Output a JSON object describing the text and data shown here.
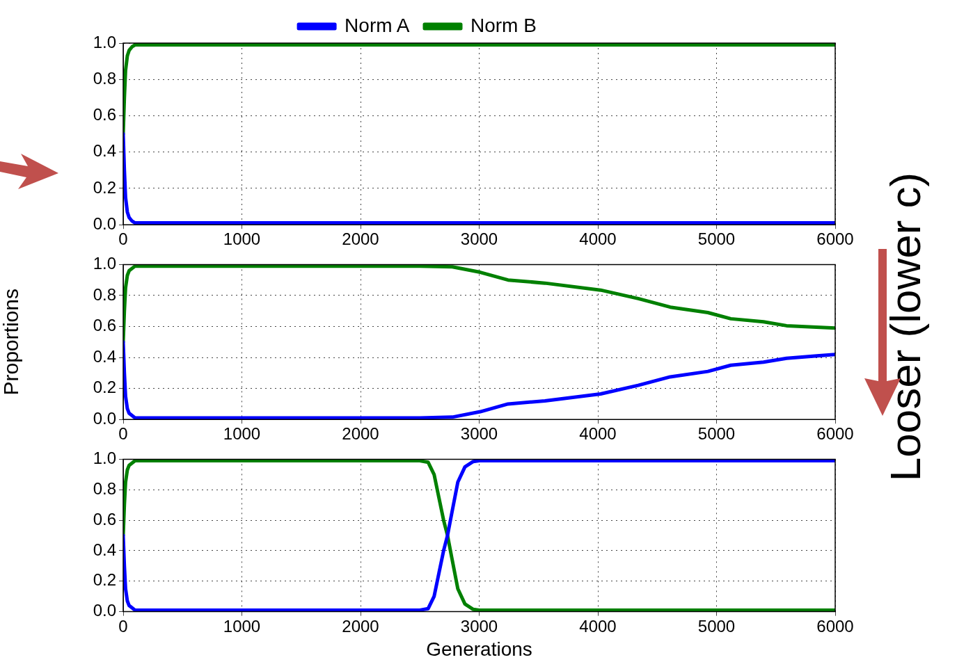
{
  "chart_data": [
    {
      "type": "line",
      "legend": "top",
      "grid": true,
      "marker": "none",
      "line_style": "solid",
      "x": [
        0,
        10,
        20,
        35,
        50,
        75,
        100,
        150,
        1000,
        2000,
        3000,
        4000,
        5000,
        6000
      ],
      "xlim": [
        0,
        6000
      ],
      "xticks": [
        0,
        1000,
        2000,
        3000,
        4000,
        5000,
        6000
      ],
      "ylim": [
        0,
        1
      ],
      "yticks": [
        {
          "value": 0,
          "label": "0.0"
        },
        {
          "value": 0.2,
          "label": "0.2"
        },
        {
          "value": 0.4,
          "label": "0.4"
        },
        {
          "value": 0.6,
          "label": "0.6"
        },
        {
          "value": 0.8,
          "label": "0.8"
        },
        {
          "value": 1,
          "label": "1.0"
        }
      ],
      "series": [
        {
          "name": "Norm A",
          "color": "#0000ff",
          "values": [
            0.5,
            0.3,
            0.15,
            0.07,
            0.04,
            0.02,
            0.01,
            0.01,
            0.01,
            0.01,
            0.01,
            0.01,
            0.01,
            0.01
          ]
        },
        {
          "name": "Norm B",
          "color": "#008000",
          "values": [
            0.5,
            0.7,
            0.85,
            0.93,
            0.96,
            0.98,
            0.99,
            0.99,
            0.99,
            0.99,
            0.99,
            0.99,
            0.99,
            0.99
          ]
        }
      ]
    },
    {
      "type": "line",
      "legend": false,
      "grid": true,
      "marker": "none",
      "line_style": "solid",
      "ylabel": "Proportions",
      "annotations": [
        "Looser (lower c)"
      ],
      "x": [
        0,
        10,
        20,
        35,
        50,
        100,
        1000,
        2000,
        2500,
        2774,
        3009,
        3243,
        3554,
        4023,
        4340,
        4610,
        4927,
        5120,
        5396,
        5590,
        6000
      ],
      "xlim": [
        0,
        6000
      ],
      "xticks": [
        0,
        1000,
        2000,
        3000,
        4000,
        5000,
        6000
      ],
      "ylim": [
        0,
        1
      ],
      "yticks": [
        {
          "value": 0,
          "label": "0.0"
        },
        {
          "value": 0.2,
          "label": "0.2"
        },
        {
          "value": 0.4,
          "label": "0.4"
        },
        {
          "value": 0.6,
          "label": "0.6"
        },
        {
          "value": 0.8,
          "label": "0.8"
        },
        {
          "value": 1,
          "label": "1.0"
        }
      ],
      "series": [
        {
          "color": "#0000ff",
          "values": [
            0.5,
            0.3,
            0.15,
            0.07,
            0.04,
            0.01,
            0.01,
            0.01,
            0.01,
            0.015,
            0.05,
            0.1,
            0.12,
            0.165,
            0.22,
            0.275,
            0.31,
            0.35,
            0.37,
            0.395,
            0.42
          ]
        },
        {
          "color": "#008000",
          "values": [
            0.5,
            0.7,
            0.85,
            0.93,
            0.96,
            0.99,
            0.99,
            0.99,
            0.99,
            0.985,
            0.95,
            0.9,
            0.88,
            0.835,
            0.78,
            0.725,
            0.69,
            0.65,
            0.63,
            0.605,
            0.59
          ]
        }
      ]
    },
    {
      "type": "line",
      "legend": false,
      "grid": true,
      "marker": "none",
      "line_style": "solid",
      "xlabel": "Generations",
      "x": [
        0,
        10,
        20,
        35,
        50,
        100,
        1000,
        2000,
        2500,
        2570,
        2620,
        2660,
        2700,
        2733,
        2770,
        2820,
        2880,
        2950,
        3000,
        4000,
        5000,
        6000
      ],
      "xlim": [
        0,
        6000
      ],
      "xticks": [
        0,
        1000,
        2000,
        3000,
        4000,
        5000,
        6000
      ],
      "ylim": [
        0,
        1
      ],
      "yticks": [
        {
          "value": 0,
          "label": "0.0"
        },
        {
          "value": 0.2,
          "label": "0.2"
        },
        {
          "value": 0.4,
          "label": "0.4"
        },
        {
          "value": 0.6,
          "label": "0.6"
        },
        {
          "value": 0.8,
          "label": "0.8"
        },
        {
          "value": 1,
          "label": "1.0"
        }
      ],
      "series": [
        {
          "color": "#0000ff",
          "values": [
            0.5,
            0.3,
            0.15,
            0.07,
            0.04,
            0.01,
            0.01,
            0.01,
            0.01,
            0.02,
            0.1,
            0.25,
            0.4,
            0.5,
            0.65,
            0.85,
            0.95,
            0.985,
            0.99,
            0.99,
            0.99,
            0.99
          ]
        },
        {
          "color": "#008000",
          "values": [
            0.5,
            0.7,
            0.85,
            0.93,
            0.96,
            0.99,
            0.99,
            0.99,
            0.99,
            0.98,
            0.9,
            0.75,
            0.6,
            0.5,
            0.35,
            0.15,
            0.05,
            0.015,
            0.01,
            0.01,
            0.01,
            0.01
          ]
        }
      ]
    }
  ]
}
